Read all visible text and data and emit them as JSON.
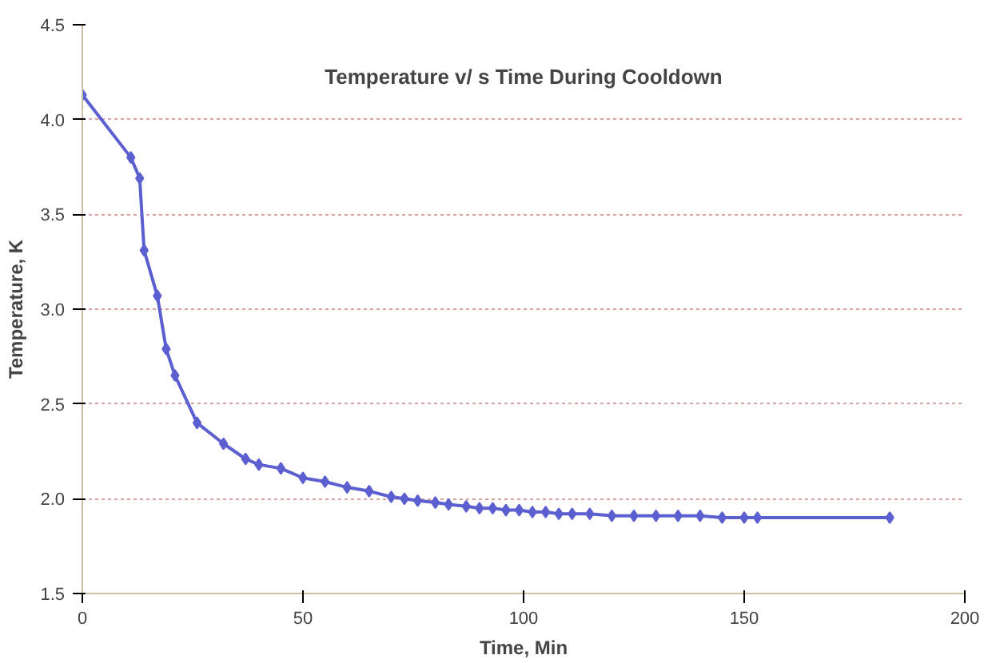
{
  "chart_data": {
    "type": "line",
    "title": "Temperature v/ s Time During Cooldown",
    "xlabel": "Time, Min",
    "ylabel": "Temperature, K",
    "xlim": [
      0,
      200
    ],
    "xticks": [
      0,
      50,
      100,
      150,
      200
    ],
    "ylim": [
      1.5,
      4.5
    ],
    "yticks": [
      {
        "value": 1.5,
        "label": "1.5"
      },
      {
        "value": 2.0,
        "label": "2.0"
      },
      {
        "value": 2.5,
        "label": "2.5"
      },
      {
        "value": 3.0,
        "label": "3.0"
      },
      {
        "value": 3.5,
        "label": "3.5"
      },
      {
        "value": 4.0,
        "label": "4.0"
      },
      {
        "value": 4.5,
        "label": "4.5"
      }
    ],
    "grid": "y",
    "marker": "diamond",
    "line_style": "solid",
    "series": [
      {
        "color": "#5b5fcf",
        "x": [
          0,
          11,
          13,
          14,
          17,
          19,
          21,
          26,
          32,
          37,
          40,
          45,
          50,
          55,
          60,
          65,
          70,
          73,
          76,
          80,
          83,
          87,
          90,
          93,
          96,
          99,
          102,
          105,
          108,
          111,
          115,
          120,
          125,
          130,
          135,
          140,
          145,
          150,
          153,
          183
        ],
        "values": [
          4.13,
          3.8,
          3.69,
          3.31,
          3.07,
          2.79,
          2.65,
          2.4,
          2.29,
          2.21,
          2.18,
          2.16,
          2.11,
          2.09,
          2.06,
          2.04,
          2.01,
          2.0,
          1.99,
          1.98,
          1.97,
          1.96,
          1.95,
          1.95,
          1.94,
          1.94,
          1.93,
          1.93,
          1.92,
          1.92,
          1.92,
          1.91,
          1.91,
          1.91,
          1.91,
          1.91,
          1.9,
          1.9,
          1.9,
          1.9
        ]
      }
    ]
  }
}
